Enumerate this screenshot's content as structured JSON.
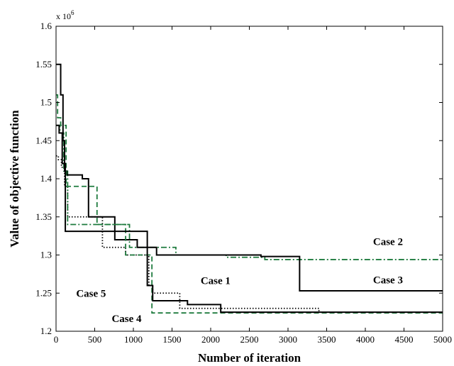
{
  "chart_data": {
    "type": "line",
    "title": "",
    "xlabel": "Number of iteration",
    "ylabel": "Value of objective function",
    "y_multiplier_label": "x 10",
    "y_multiplier_exponent": "6",
    "xlim": [
      0,
      5000
    ],
    "ylim": [
      1.2,
      1.6
    ],
    "x_ticks": [
      0,
      500,
      1000,
      1500,
      2000,
      2500,
      3000,
      3500,
      4000,
      4500,
      5000
    ],
    "x_tick_labels": [
      "0",
      "500",
      "1000",
      "1500",
      "2000",
      "2500",
      "3000",
      "3500",
      "4000",
      "4500",
      "5000"
    ],
    "y_ticks": [
      1.2,
      1.25,
      1.3,
      1.35,
      1.4,
      1.45,
      1.5,
      1.55,
      1.6
    ],
    "y_tick_labels": [
      "1.2",
      "1.25",
      "1.3",
      "1.35",
      "1.4",
      "1.45",
      "1.5",
      "1.55",
      "1.6"
    ],
    "grid": false,
    "step": true,
    "series": [
      {
        "name": "Case 1",
        "color": "#000000",
        "style": "dotted",
        "x": [
          0,
          30,
          70,
          110,
          150,
          200,
          250,
          450,
          600,
          750,
          900,
          1200,
          1250,
          1600,
          2150,
          3400
        ],
        "y": [
          1.43,
          1.425,
          1.415,
          1.39,
          1.35,
          1.35,
          1.35,
          1.35,
          1.31,
          1.31,
          1.3,
          1.26,
          1.25,
          1.23,
          1.23,
          1.225
        ],
        "label_x": 1870,
        "label_y": 1.262
      },
      {
        "name": "Case 2",
        "color": "#1e7b3e",
        "style": "dashdot",
        "x": [
          0,
          50,
          100,
          150,
          250,
          500,
          950,
          1200,
          1550,
          2200,
          2700,
          5000
        ],
        "y": [
          1.47,
          1.46,
          1.41,
          1.34,
          1.34,
          1.34,
          1.31,
          1.31,
          1.3,
          1.297,
          1.294,
          1.294
        ],
        "label_x": 4100,
        "label_y": 1.313
      },
      {
        "name": "Case 3",
        "color": "#000000",
        "style": "solid",
        "x": [
          0,
          30,
          60,
          90,
          110,
          140,
          340,
          420,
          600,
          760,
          1050,
          1300,
          2650,
          3150,
          5000
        ],
        "y": [
          1.55,
          1.55,
          1.51,
          1.45,
          1.41,
          1.405,
          1.4,
          1.35,
          1.35,
          1.32,
          1.31,
          1.3,
          1.298,
          1.253,
          1.253
        ],
        "label_x": 4100,
        "label_y": 1.263
      },
      {
        "name": "Case 4",
        "color": "#1e7b3e",
        "style": "dashed",
        "x": [
          0,
          20,
          60,
          130,
          230,
          530,
          900,
          1240,
          5000
        ],
        "y": [
          1.51,
          1.48,
          1.47,
          1.39,
          1.39,
          1.34,
          1.3,
          1.224,
          1.224
        ],
        "label_x": 720,
        "label_y": 1.212
      },
      {
        "name": "Case 5",
        "color": "#000000",
        "style": "solid",
        "x": [
          0,
          40,
          80,
          120,
          460,
          1180,
          1250,
          1320,
          1700,
          2130,
          5000
        ],
        "y": [
          1.47,
          1.46,
          1.42,
          1.331,
          1.331,
          1.26,
          1.24,
          1.24,
          1.235,
          1.225,
          1.225
        ],
        "label_x": 260,
        "label_y": 1.245
      }
    ]
  }
}
